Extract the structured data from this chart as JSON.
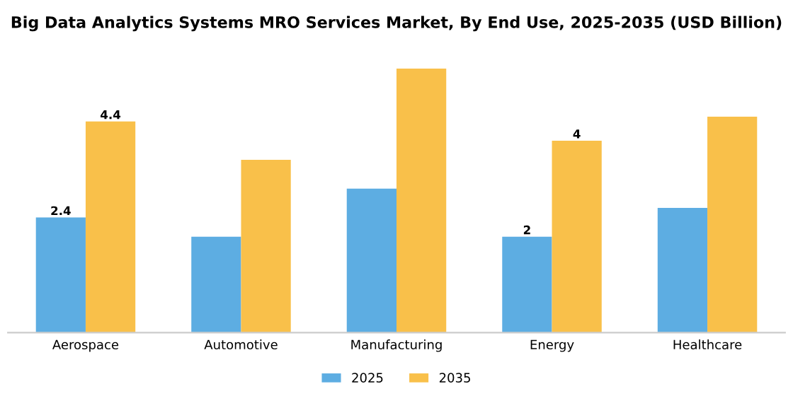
{
  "chart_data": {
    "type": "bar",
    "title": "Big Data Analytics Systems MRO Services Market, By End Use, 2025-2035 (USD Billion)",
    "categories": [
      "Aerospace",
      "Automotive",
      "Manufacturing",
      "Energy",
      "Healthcare"
    ],
    "series": [
      {
        "name": "2025",
        "color": "#5dade2",
        "values": [
          2.4,
          2.0,
          3.0,
          2.0,
          2.6
        ],
        "value_labels": [
          "2.4",
          null,
          null,
          "2",
          null
        ]
      },
      {
        "name": "2035",
        "color": "#f9c04a",
        "values": [
          4.4,
          3.6,
          5.5,
          4.0,
          4.5
        ],
        "value_labels": [
          "4.4",
          null,
          null,
          "4",
          null
        ]
      }
    ],
    "legend": "bottom",
    "grid": false
  }
}
